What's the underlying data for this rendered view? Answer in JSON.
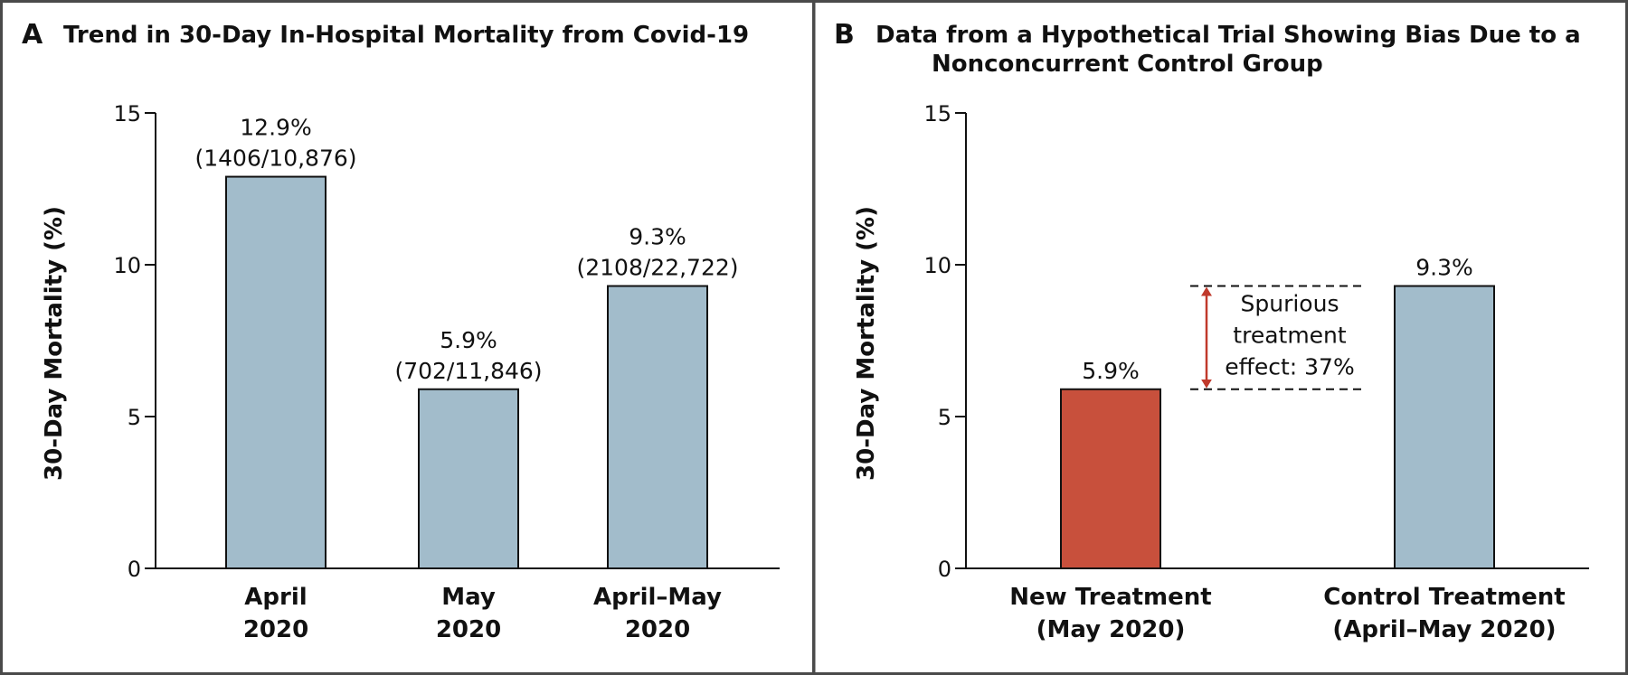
{
  "figure_colors": {
    "blue_bar": "#a2bccb",
    "red_bar": "#c8503c",
    "arrow": "#c0392b",
    "frame": "#4a4a4a"
  },
  "chart_data": [
    {
      "type": "bar",
      "panel_letter": "A",
      "title": "Trend in 30-Day In-Hospital Mortality from Covid-19",
      "ylabel": "30-Day Mortality (%)",
      "xlabel": "",
      "ylim": [
        0,
        15
      ],
      "yticks": [
        "0",
        "5",
        "10",
        "15"
      ],
      "categories": [
        "April\n2020",
        "May\n2020",
        "April–May\n2020"
      ],
      "values": [
        12.9,
        5.9,
        9.3
      ],
      "data_labels": [
        "12.9%\n(1406/10,876)",
        "5.9%\n(702/11,846)",
        "9.3%\n(2108/22,722)"
      ],
      "bar_colors": [
        "blue",
        "blue",
        "blue"
      ],
      "grid": false
    },
    {
      "type": "bar",
      "panel_letter": "B",
      "title": "Data from a Hypothetical Trial Showing Bias Due to a\nNonconcurrent Control Group",
      "ylabel": "30-Day Mortality (%)",
      "xlabel": "",
      "ylim": [
        0,
        15
      ],
      "yticks": [
        "0",
        "5",
        "10",
        "15"
      ],
      "categories": [
        "New Treatment\n(May 2020)",
        "Control Treatment\n(April–May 2020)"
      ],
      "values": [
        5.9,
        9.3
      ],
      "data_labels": [
        "5.9%",
        "9.3%"
      ],
      "bar_colors": [
        "red",
        "blue"
      ],
      "grid": false,
      "annotation": {
        "text": "Spurious\ntreatment\neffect: 37%",
        "from_value": 5.9,
        "to_value": 9.3
      }
    }
  ]
}
